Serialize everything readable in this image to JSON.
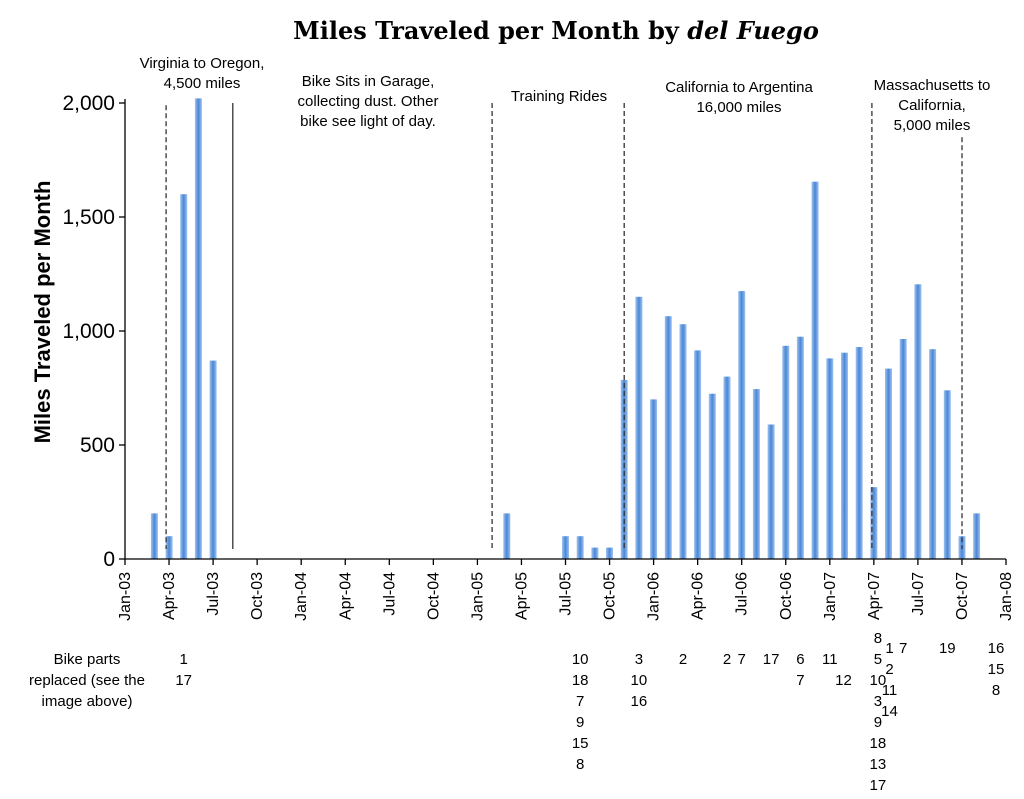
{
  "chart_data": {
    "type": "bar",
    "title_plain": "Miles Traveled per Month by ",
    "title_italic": "del Fuego",
    "ylabel": "Miles Traveled per Month",
    "ylim": [
      0,
      2000
    ],
    "yticks": [
      "0",
      "500",
      "1,000",
      "1,500",
      "2,000"
    ],
    "ytick_values": [
      0,
      500,
      1000,
      1500,
      2000
    ],
    "x_start": "2003-01",
    "x_end": "2008-01",
    "xticks": [
      "Jan-03",
      "Apr-03",
      "Jul-03",
      "Oct-03",
      "Jan-04",
      "Apr-04",
      "Jul-04",
      "Oct-04",
      "Jan-05",
      "Apr-05",
      "Jul-05",
      "Oct-05",
      "Jan-06",
      "Apr-06",
      "Jul-06",
      "Oct-06",
      "Jan-07",
      "Apr-07",
      "Jul-07",
      "Oct-07",
      "Jan-08"
    ],
    "grid": false,
    "bar_color": "#4a86d6",
    "bars": [
      {
        "month": "2003-03",
        "value": 200
      },
      {
        "month": "2003-04",
        "value": 100
      },
      {
        "month": "2003-05",
        "value": 1600
      },
      {
        "month": "2003-06",
        "value": 2020
      },
      {
        "month": "2003-07",
        "value": 870
      },
      {
        "month": "2005-03",
        "value": 200
      },
      {
        "month": "2005-07",
        "value": 100
      },
      {
        "month": "2005-08",
        "value": 100
      },
      {
        "month": "2005-09",
        "value": 50
      },
      {
        "month": "2005-10",
        "value": 50
      },
      {
        "month": "2005-11",
        "value": 785
      },
      {
        "month": "2005-12",
        "value": 1150
      },
      {
        "month": "2006-01",
        "value": 700
      },
      {
        "month": "2006-02",
        "value": 1065
      },
      {
        "month": "2006-03",
        "value": 1030
      },
      {
        "month": "2006-04",
        "value": 915
      },
      {
        "month": "2006-05",
        "value": 725
      },
      {
        "month": "2006-06",
        "value": 800
      },
      {
        "month": "2006-07",
        "value": 1175
      },
      {
        "month": "2006-08",
        "value": 745
      },
      {
        "month": "2006-09",
        "value": 590
      },
      {
        "month": "2006-10",
        "value": 935
      },
      {
        "month": "2006-11",
        "value": 975
      },
      {
        "month": "2006-12",
        "value": 1655
      },
      {
        "month": "2007-01",
        "value": 880
      },
      {
        "month": "2007-02",
        "value": 905
      },
      {
        "month": "2007-03",
        "value": 930
      },
      {
        "month": "2007-04",
        "value": 315
      },
      {
        "month": "2007-05",
        "value": 835
      },
      {
        "month": "2007-06",
        "value": 965
      },
      {
        "month": "2007-07",
        "value": 1205
      },
      {
        "month": "2007-08",
        "value": 920
      },
      {
        "month": "2007-09",
        "value": 740
      },
      {
        "month": "2007-10",
        "value": 100
      },
      {
        "month": "2007-11",
        "value": 200
      }
    ],
    "dividers": [
      {
        "month": "2003-04",
        "style": "dashed",
        "top": 1990
      },
      {
        "month": "2003-08",
        "style": "solid",
        "top": 2000
      },
      {
        "month": "2005-02",
        "style": "dashed",
        "top": 2000
      },
      {
        "month": "2005-11",
        "style": "dashed",
        "top": 2000
      },
      {
        "month": "2007-04",
        "style": "dashed",
        "top": 2000
      },
      {
        "month": "2007-10",
        "style": "dashed",
        "top": 1850
      }
    ],
    "annotations": [
      {
        "id": "virginia",
        "lines": [
          "Virginia to Oregon,",
          "4,500 miles"
        ]
      },
      {
        "id": "garage",
        "lines": [
          "Bike Sits in Garage,",
          "collecting dust. Other",
          "bike see light of day."
        ]
      },
      {
        "id": "training",
        "lines": [
          "Training Rides"
        ]
      },
      {
        "id": "argentina",
        "lines": [
          "California to Argentina",
          "16,000 miles"
        ]
      },
      {
        "id": "mass",
        "lines": [
          "Massachusetts to",
          "California,",
          "5,000 miles"
        ]
      }
    ],
    "parts_label": [
      "Bike parts",
      "replaced (see the",
      "image above)"
    ],
    "parts": [
      {
        "month": "2003-05",
        "items": [
          "1",
          "17"
        ]
      },
      {
        "month": "2005-08",
        "items": [
          "10",
          "18",
          "7",
          "9",
          "15",
          "8"
        ]
      },
      {
        "month": "2005-12",
        "items": [
          "3",
          "10",
          "16"
        ]
      },
      {
        "month": "2006-03",
        "items": [
          "2"
        ]
      },
      {
        "month": "2006-06",
        "items": [
          "2"
        ]
      },
      {
        "month": "2006-07",
        "items": [
          "7"
        ]
      },
      {
        "month": "2006-09",
        "items": [
          "17"
        ]
      },
      {
        "month": "2006-11",
        "items": [
          "6",
          "7"
        ]
      },
      {
        "month": "2007-01",
        "items": [
          "11"
        ]
      },
      {
        "month": "2007-02",
        "items": [
          "",
          "12"
        ]
      },
      {
        "month": "2007-04",
        "items": [
          "8",
          "5",
          "10",
          "3",
          "9",
          "18",
          "13",
          "17"
        ]
      },
      {
        "month": "2007-05",
        "items": [
          "1",
          "2",
          "11",
          "14"
        ]
      },
      {
        "month": "2007-06",
        "items": [
          "7"
        ]
      },
      {
        "month": "2007-09",
        "items": [
          "19"
        ]
      },
      {
        "month": "2008-01",
        "items": [
          "16",
          "15",
          "8"
        ]
      }
    ]
  }
}
